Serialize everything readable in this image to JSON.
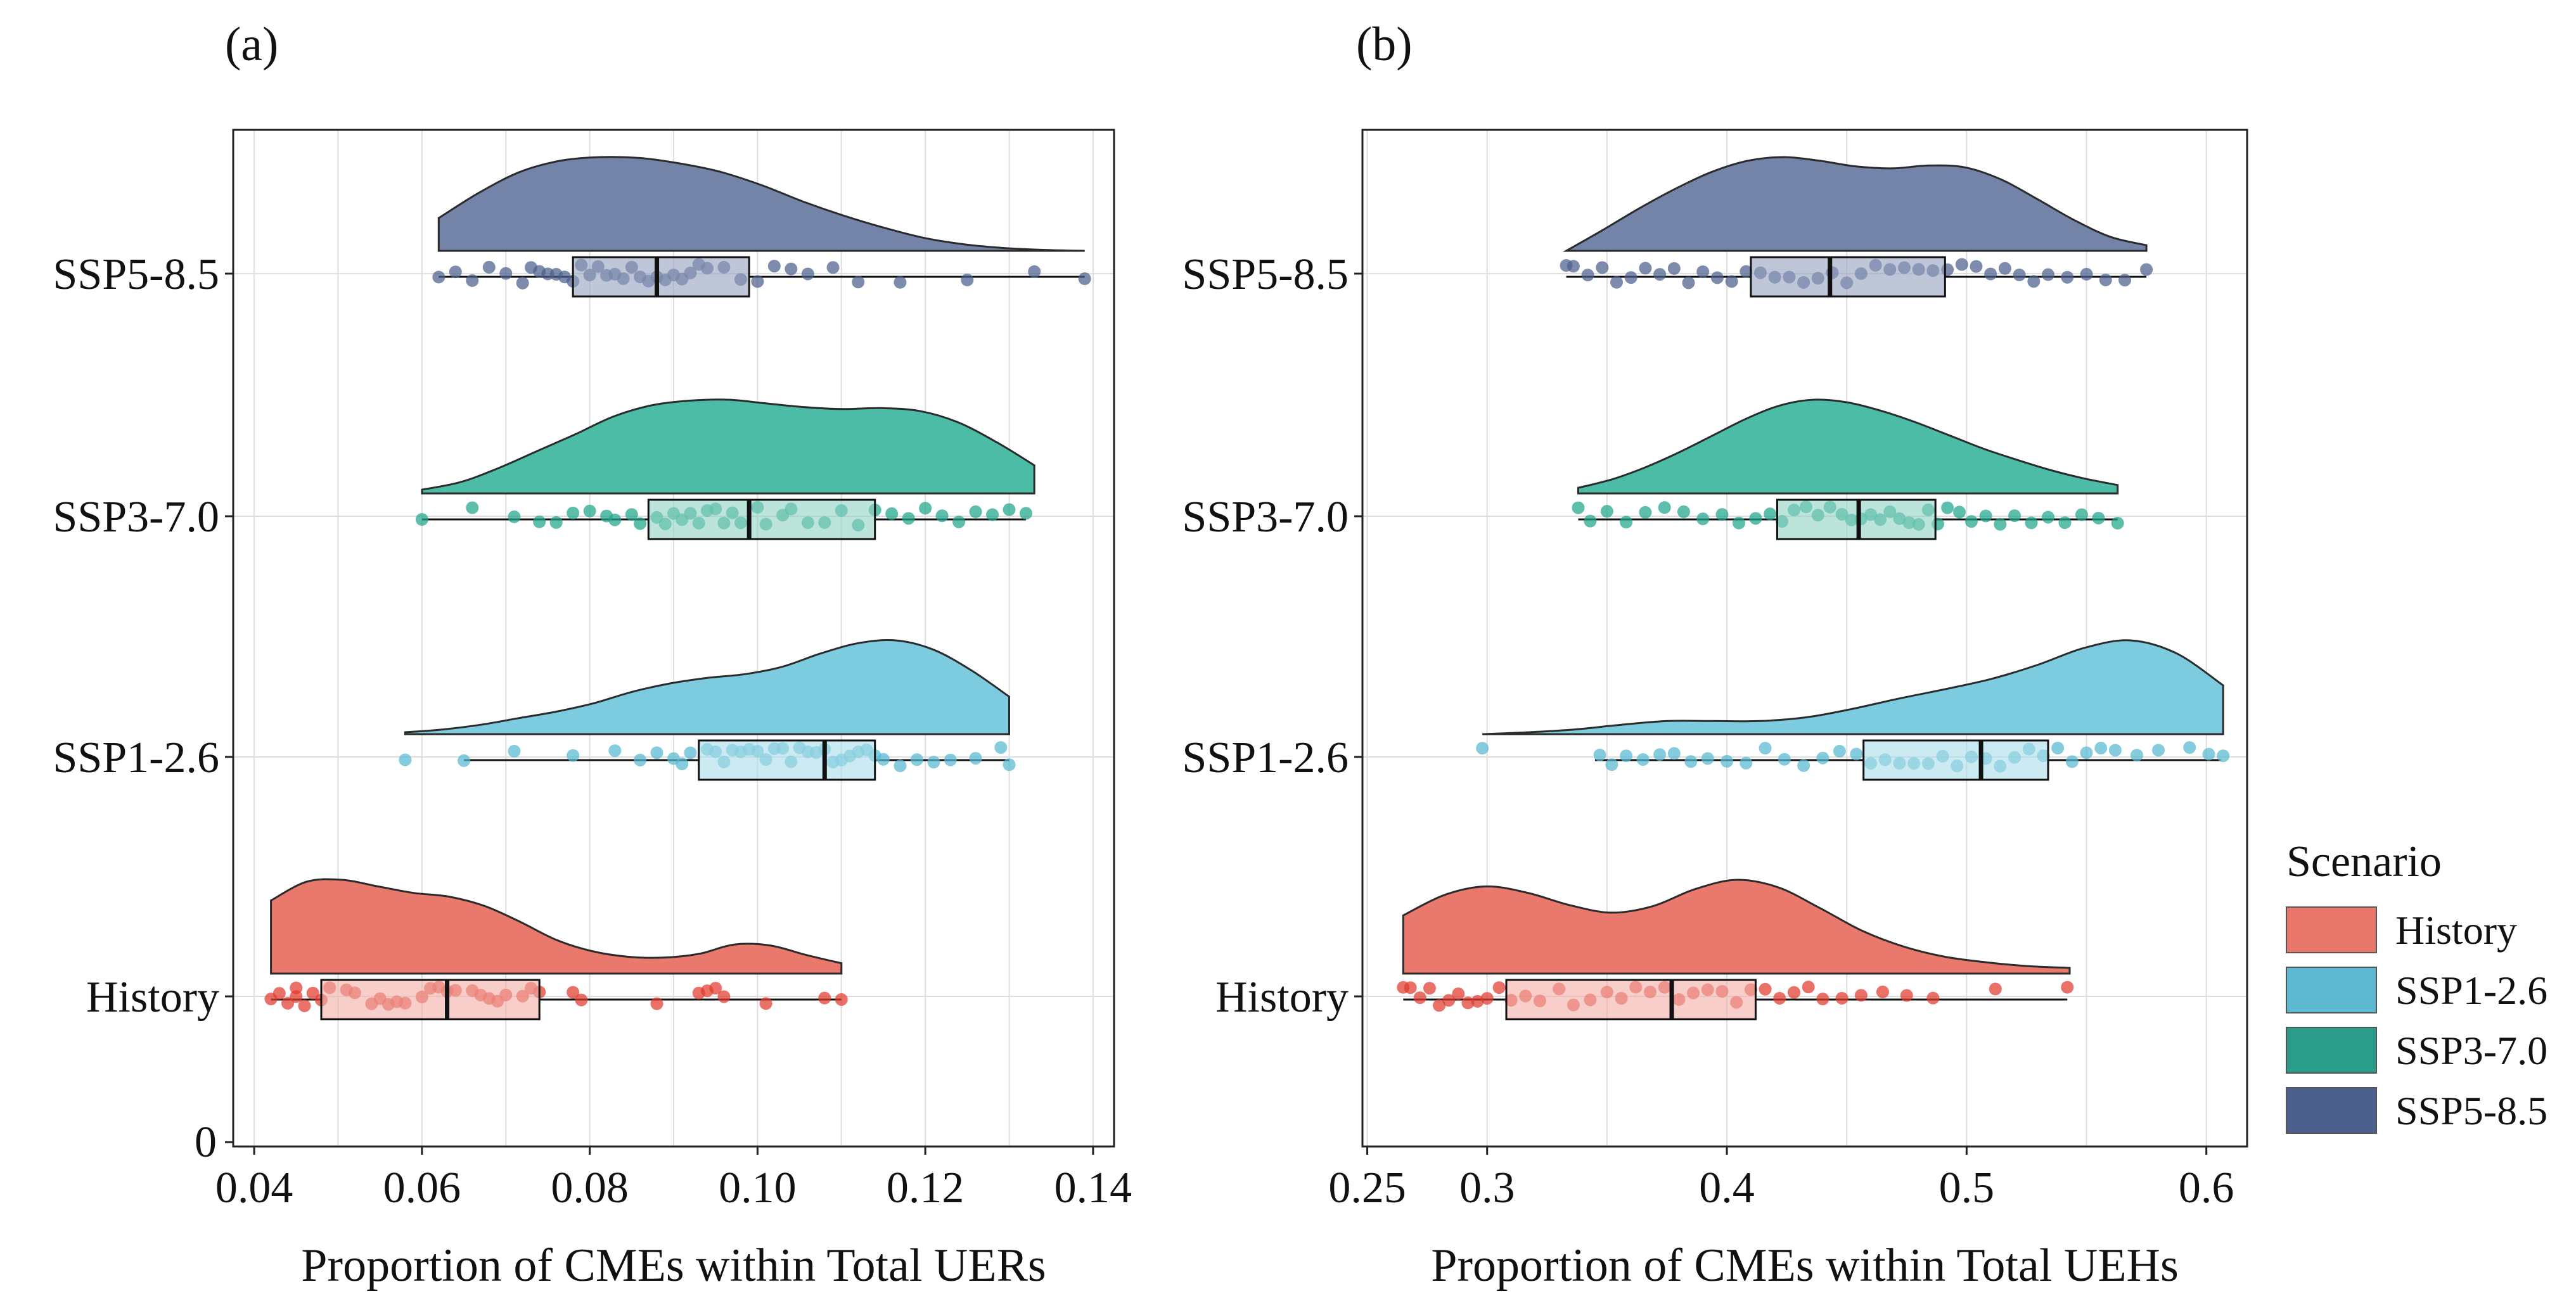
{
  "chart_data": [
    {
      "type": "raincloud",
      "panel_label": "(a)",
      "xlabel": "Proportion of CMEs within Total UERs",
      "ylabel": "",
      "xlim": [
        0.0375,
        0.1425
      ],
      "x_ticks": [
        0.04,
        0.06,
        0.08,
        0.1,
        0.12,
        0.14
      ],
      "x_tick_labels": [
        "0.04",
        "0.06",
        "0.08",
        "0.10",
        "0.12",
        "0.14"
      ],
      "y_zero_label": "0",
      "grid": true,
      "series": [
        {
          "name": "History",
          "tick_label": "History",
          "box": {
            "whisker_low": 0.042,
            "q1": 0.048,
            "median": 0.063,
            "q3": 0.074,
            "whisker_high": 0.11
          },
          "density_range": [
            0.042,
            0.11
          ],
          "density": [
            0.78,
            0.98,
            1.0,
            0.93,
            0.86,
            0.82,
            0.72,
            0.55,
            0.36,
            0.24,
            0.18,
            0.17,
            0.21,
            0.31,
            0.3,
            0.2,
            0.11
          ],
          "points": [
            0.042,
            0.043,
            0.044,
            0.045,
            0.045,
            0.046,
            0.047,
            0.048,
            0.049,
            0.051,
            0.052,
            0.054,
            0.055,
            0.056,
            0.057,
            0.058,
            0.06,
            0.061,
            0.062,
            0.063,
            0.064,
            0.066,
            0.067,
            0.068,
            0.069,
            0.07,
            0.072,
            0.073,
            0.074,
            0.078,
            0.079,
            0.088,
            0.093,
            0.094,
            0.095,
            0.096,
            0.101,
            0.108,
            0.11
          ]
        },
        {
          "name": "SSP1-2.6",
          "tick_label": "SSP1-2.6",
          "box": {
            "whisker_low": 0.065,
            "q1": 0.093,
            "median": 0.108,
            "q3": 0.114,
            "whisker_high": 0.13
          },
          "density_range": [
            0.058,
            0.13
          ],
          "density": [
            0.02,
            0.05,
            0.1,
            0.17,
            0.24,
            0.33,
            0.45,
            0.54,
            0.6,
            0.64,
            0.72,
            0.86,
            0.97,
            1.0,
            0.9,
            0.68,
            0.4
          ],
          "points": [
            0.058,
            0.065,
            0.071,
            0.078,
            0.083,
            0.086,
            0.088,
            0.09,
            0.091,
            0.092,
            0.094,
            0.095,
            0.096,
            0.097,
            0.098,
            0.099,
            0.1,
            0.101,
            0.102,
            0.103,
            0.104,
            0.105,
            0.106,
            0.107,
            0.108,
            0.109,
            0.11,
            0.111,
            0.112,
            0.113,
            0.114,
            0.115,
            0.117,
            0.119,
            0.121,
            0.123,
            0.126,
            0.129,
            0.13
          ]
        },
        {
          "name": "SSP3-7.0",
          "tick_label": "SSP3-7.0",
          "box": {
            "whisker_low": 0.06,
            "q1": 0.087,
            "median": 0.099,
            "q3": 0.114,
            "whisker_high": 0.132
          },
          "density_range": [
            0.06,
            0.133
          ],
          "density": [
            0.04,
            0.12,
            0.27,
            0.45,
            0.63,
            0.82,
            0.94,
            0.99,
            1.0,
            0.96,
            0.92,
            0.9,
            0.91,
            0.88,
            0.76,
            0.55,
            0.3
          ],
          "points": [
            0.06,
            0.066,
            0.071,
            0.074,
            0.076,
            0.078,
            0.08,
            0.082,
            0.083,
            0.085,
            0.086,
            0.088,
            0.089,
            0.09,
            0.091,
            0.092,
            0.093,
            0.094,
            0.095,
            0.096,
            0.097,
            0.098,
            0.1,
            0.101,
            0.103,
            0.104,
            0.106,
            0.108,
            0.11,
            0.112,
            0.114,
            0.116,
            0.118,
            0.12,
            0.122,
            0.124,
            0.126,
            0.128,
            0.13,
            0.132
          ]
        },
        {
          "name": "SSP5-8.5",
          "tick_label": "SSP5-8.5",
          "box": {
            "whisker_low": 0.062,
            "q1": 0.078,
            "median": 0.088,
            "q3": 0.099,
            "whisker_high": 0.139
          },
          "density_range": [
            0.062,
            0.139
          ],
          "density": [
            0.35,
            0.62,
            0.84,
            0.96,
            1.0,
            0.99,
            0.93,
            0.84,
            0.7,
            0.53,
            0.38,
            0.25,
            0.14,
            0.07,
            0.03,
            0.01,
            0.0
          ],
          "points": [
            0.062,
            0.064,
            0.066,
            0.068,
            0.07,
            0.072,
            0.073,
            0.074,
            0.075,
            0.076,
            0.077,
            0.078,
            0.079,
            0.08,
            0.081,
            0.082,
            0.083,
            0.084,
            0.085,
            0.086,
            0.087,
            0.088,
            0.089,
            0.09,
            0.091,
            0.092,
            0.093,
            0.094,
            0.096,
            0.098,
            0.1,
            0.102,
            0.104,
            0.106,
            0.109,
            0.112,
            0.117,
            0.125,
            0.133,
            0.139
          ]
        }
      ]
    },
    {
      "type": "raincloud",
      "panel_label": "(b)",
      "xlabel": "Proportion of CMEs within Total UEHs",
      "ylabel": "",
      "xlim": [
        0.248,
        0.617
      ],
      "x_ticks": [
        0.25,
        0.3,
        0.4,
        0.5,
        0.6
      ],
      "x_tick_labels": [
        "0.25",
        "0.3",
        "0.4",
        "0.5",
        "0.6"
      ],
      "grid": true,
      "series": [
        {
          "name": "History",
          "tick_label": "History",
          "box": {
            "whisker_low": 0.265,
            "q1": 0.308,
            "median": 0.377,
            "q3": 0.412,
            "whisker_high": 0.542
          },
          "density_range": [
            0.265,
            0.543
          ],
          "density": [
            0.62,
            0.84,
            0.93,
            0.86,
            0.73,
            0.65,
            0.72,
            0.9,
            1.0,
            0.92,
            0.7,
            0.46,
            0.29,
            0.18,
            0.12,
            0.08,
            0.06
          ],
          "points": [
            0.265,
            0.268,
            0.272,
            0.276,
            0.28,
            0.284,
            0.288,
            0.292,
            0.296,
            0.3,
            0.305,
            0.31,
            0.316,
            0.322,
            0.33,
            0.336,
            0.343,
            0.35,
            0.356,
            0.362,
            0.368,
            0.374,
            0.38,
            0.386,
            0.392,
            0.398,
            0.404,
            0.41,
            0.416,
            0.422,
            0.428,
            0.434,
            0.44,
            0.448,
            0.456,
            0.465,
            0.475,
            0.486,
            0.512,
            0.542
          ]
        },
        {
          "name": "SSP1-2.6",
          "tick_label": "SSP1-2.6",
          "box": {
            "whisker_low": 0.345,
            "q1": 0.457,
            "median": 0.506,
            "q3": 0.534,
            "whisker_high": 0.606
          },
          "density_range": [
            0.298,
            0.607
          ],
          "density": [
            0.0,
            0.02,
            0.05,
            0.1,
            0.14,
            0.14,
            0.14,
            0.18,
            0.27,
            0.38,
            0.48,
            0.59,
            0.74,
            0.92,
            1.0,
            0.86,
            0.52
          ],
          "points": [
            0.298,
            0.347,
            0.352,
            0.358,
            0.365,
            0.372,
            0.378,
            0.385,
            0.392,
            0.4,
            0.408,
            0.416,
            0.424,
            0.432,
            0.44,
            0.447,
            0.454,
            0.46,
            0.466,
            0.472,
            0.478,
            0.484,
            0.49,
            0.496,
            0.502,
            0.508,
            0.514,
            0.52,
            0.526,
            0.532,
            0.538,
            0.544,
            0.55,
            0.556,
            0.562,
            0.571,
            0.58,
            0.593,
            0.601,
            0.607
          ]
        },
        {
          "name": "SSP3-7.0",
          "tick_label": "SSP3-7.0",
          "box": {
            "whisker_low": 0.338,
            "q1": 0.421,
            "median": 0.455,
            "q3": 0.487,
            "whisker_high": 0.563
          },
          "density_range": [
            0.338,
            0.563
          ],
          "density": [
            0.06,
            0.15,
            0.28,
            0.44,
            0.62,
            0.8,
            0.94,
            1.0,
            0.97,
            0.88,
            0.76,
            0.62,
            0.48,
            0.36,
            0.25,
            0.16,
            0.09
          ],
          "points": [
            0.338,
            0.343,
            0.35,
            0.358,
            0.366,
            0.374,
            0.382,
            0.39,
            0.398,
            0.405,
            0.412,
            0.418,
            0.423,
            0.428,
            0.433,
            0.438,
            0.443,
            0.448,
            0.452,
            0.456,
            0.46,
            0.464,
            0.468,
            0.472,
            0.476,
            0.48,
            0.484,
            0.488,
            0.492,
            0.497,
            0.502,
            0.508,
            0.514,
            0.52,
            0.527,
            0.534,
            0.541,
            0.548,
            0.555,
            0.563
          ]
        },
        {
          "name": "SSP5-8.5",
          "tick_label": "SSP5-8.5",
          "box": {
            "whisker_low": 0.333,
            "q1": 0.41,
            "median": 0.443,
            "q3": 0.491,
            "whisker_high": 0.575
          },
          "density_range": [
            0.333,
            0.575
          ],
          "density": [
            0.0,
            0.22,
            0.45,
            0.66,
            0.84,
            0.96,
            1.0,
            0.96,
            0.9,
            0.88,
            0.91,
            0.89,
            0.76,
            0.55,
            0.33,
            0.15,
            0.06
          ],
          "points": [
            0.333,
            0.336,
            0.342,
            0.348,
            0.354,
            0.36,
            0.366,
            0.372,
            0.378,
            0.384,
            0.39,
            0.396,
            0.402,
            0.408,
            0.414,
            0.42,
            0.426,
            0.432,
            0.438,
            0.444,
            0.45,
            0.456,
            0.462,
            0.468,
            0.474,
            0.48,
            0.486,
            0.492,
            0.498,
            0.504,
            0.51,
            0.516,
            0.522,
            0.528,
            0.534,
            0.542,
            0.55,
            0.558,
            0.566,
            0.575
          ]
        }
      ]
    }
  ],
  "legend": {
    "title": "Scenario",
    "items": [
      {
        "label": "History",
        "color": "#E8766A"
      },
      {
        "label": "SSP1-2.6",
        "color": "#5BB8D0"
      },
      {
        "label": "SSP3-7.0",
        "color": "#2A9D8A"
      },
      {
        "label": "SSP5-8.5",
        "color": "#4D5F8C"
      }
    ]
  },
  "colors": {
    "History": {
      "cloud": "#E8796C",
      "box": "#F2AEA6",
      "point": "#E03A2C"
    },
    "SSP1-2.6": {
      "cloud": "#7DCBDE",
      "box": "#A9DCE8",
      "point": "#56B9D2"
    },
    "SSP3-7.0": {
      "cloud": "#4DBCA6",
      "box": "#8FD2C3",
      "point": "#1FA58A"
    },
    "SSP5-8.5": {
      "cloud": "#7483A8",
      "box": "#95A0BD",
      "point": "#4B5E8C"
    }
  }
}
